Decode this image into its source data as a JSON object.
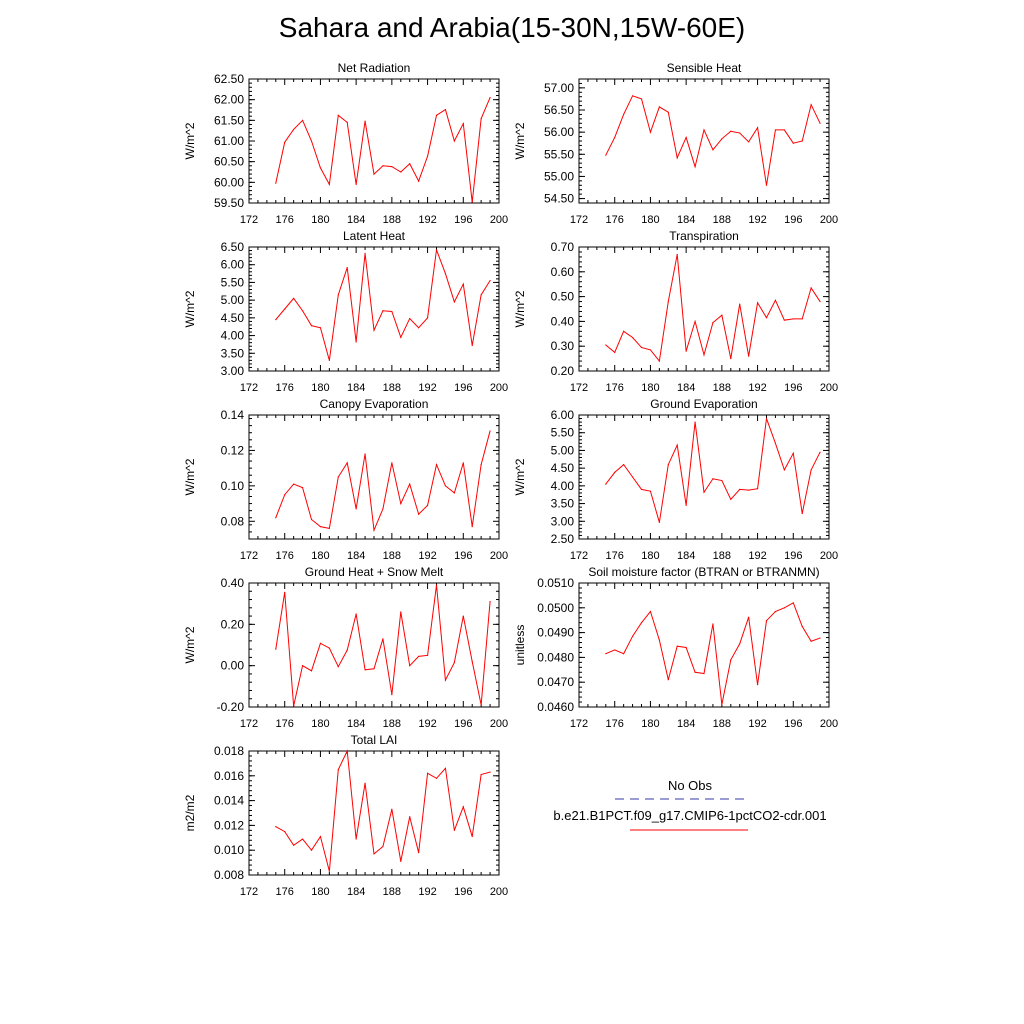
{
  "figure": {
    "title": "Sahara and Arabia(15-30N,15W-60E)"
  },
  "chart_data": [
    {
      "type": "line",
      "title": "Net Radiation",
      "ylabel": "W/m^2",
      "xlim": [
        172,
        200
      ],
      "xticks": [
        "172",
        "176",
        "180",
        "184",
        "188",
        "192",
        "196",
        "200"
      ],
      "ylim": [
        59.5,
        62.5
      ],
      "yticks": [
        "59.50",
        "60.00",
        "60.50",
        "61.00",
        "61.50",
        "62.00",
        "62.50"
      ],
      "x": [
        175,
        176,
        177,
        178,
        179,
        180,
        181,
        182,
        183,
        184,
        185,
        186,
        187,
        188,
        189,
        190,
        191,
        192,
        193,
        194,
        195,
        196,
        197,
        198,
        199
      ],
      "series": [
        {
          "color": "#ff0000",
          "values": [
            59.98,
            60.97,
            61.28,
            61.5,
            61.0,
            60.35,
            59.95,
            61.62,
            61.45,
            59.95,
            61.48,
            60.2,
            60.4,
            60.38,
            60.25,
            60.45,
            60.03,
            60.63,
            61.62,
            61.76,
            61.0,
            61.42,
            59.52,
            61.54,
            62.05
          ]
        }
      ]
    },
    {
      "type": "line",
      "title": "Sensible Heat",
      "ylabel": "W/m^2",
      "xlim": [
        172,
        200
      ],
      "xticks": [
        "172",
        "176",
        "180",
        "184",
        "188",
        "192",
        "196",
        "200"
      ],
      "ylim": [
        54.4,
        57.2
      ],
      "yticks": [
        "54.50",
        "55.00",
        "55.50",
        "56.00",
        "56.50",
        "57.00"
      ],
      "x": [
        175,
        176,
        177,
        178,
        179,
        180,
        181,
        182,
        183,
        184,
        185,
        186,
        187,
        188,
        189,
        190,
        191,
        192,
        193,
        194,
        195,
        196,
        197,
        198,
        199
      ],
      "series": [
        {
          "color": "#ff0000",
          "values": [
            55.48,
            55.88,
            56.4,
            56.82,
            56.75,
            56.0,
            56.57,
            56.45,
            55.42,
            55.88,
            55.22,
            56.05,
            55.6,
            55.85,
            56.02,
            55.98,
            55.78,
            56.1,
            54.8,
            56.05,
            56.05,
            55.75,
            55.8,
            56.62,
            56.2
          ]
        }
      ]
    },
    {
      "type": "line",
      "title": "Latent Heat",
      "ylabel": "W/m^2",
      "xlim": [
        172,
        200
      ],
      "xticks": [
        "172",
        "176",
        "180",
        "184",
        "188",
        "192",
        "196",
        "200"
      ],
      "ylim": [
        3.0,
        6.5
      ],
      "yticks": [
        "3.00",
        "3.50",
        "4.00",
        "4.50",
        "5.00",
        "5.50",
        "6.00",
        "6.50"
      ],
      "x": [
        175,
        176,
        177,
        178,
        179,
        180,
        181,
        182,
        183,
        184,
        185,
        186,
        187,
        188,
        189,
        190,
        191,
        192,
        193,
        194,
        195,
        196,
        197,
        198,
        199
      ],
      "series": [
        {
          "color": "#ff0000",
          "values": [
            4.45,
            4.75,
            5.05,
            4.7,
            4.28,
            4.22,
            3.3,
            5.15,
            5.92,
            3.82,
            6.32,
            4.15,
            4.7,
            4.68,
            3.95,
            4.48,
            4.22,
            4.5,
            6.42,
            5.75,
            4.95,
            5.45,
            3.72,
            5.15,
            5.55
          ]
        }
      ]
    },
    {
      "type": "line",
      "title": "Transpiration",
      "ylabel": "W/m^2",
      "xlim": [
        172,
        200
      ],
      "xticks": [
        "172",
        "176",
        "180",
        "184",
        "188",
        "192",
        "196",
        "200"
      ],
      "ylim": [
        0.2,
        0.7
      ],
      "yticks": [
        "0.20",
        "0.30",
        "0.40",
        "0.50",
        "0.60",
        "0.70"
      ],
      "x": [
        175,
        176,
        177,
        178,
        179,
        180,
        181,
        182,
        183,
        184,
        185,
        186,
        187,
        188,
        189,
        190,
        191,
        192,
        193,
        194,
        195,
        196,
        197,
        198,
        199
      ],
      "series": [
        {
          "color": "#ff0000",
          "values": [
            0.305,
            0.275,
            0.36,
            0.335,
            0.295,
            0.285,
            0.24,
            0.48,
            0.67,
            0.28,
            0.4,
            0.265,
            0.395,
            0.425,
            0.25,
            0.47,
            0.26,
            0.475,
            0.415,
            0.485,
            0.405,
            0.41,
            0.41,
            0.535,
            0.48
          ]
        }
      ]
    },
    {
      "type": "line",
      "title": "Canopy Evaporation",
      "ylabel": "W/m^2",
      "xlim": [
        172,
        200
      ],
      "xticks": [
        "172",
        "176",
        "180",
        "184",
        "188",
        "192",
        "196",
        "200"
      ],
      "ylim": [
        0.07,
        0.14
      ],
      "yticks": [
        "0.08",
        "0.10",
        "0.12",
        "0.14"
      ],
      "x": [
        175,
        176,
        177,
        178,
        179,
        180,
        181,
        182,
        183,
        184,
        185,
        186,
        187,
        188,
        189,
        190,
        191,
        192,
        193,
        194,
        195,
        196,
        197,
        198,
        199
      ],
      "series": [
        {
          "color": "#ff0000",
          "values": [
            0.082,
            0.095,
            0.101,
            0.099,
            0.081,
            0.077,
            0.076,
            0.105,
            0.113,
            0.087,
            0.118,
            0.075,
            0.087,
            0.113,
            0.09,
            0.101,
            0.084,
            0.089,
            0.112,
            0.1,
            0.096,
            0.113,
            0.077,
            0.112,
            0.131
          ]
        }
      ]
    },
    {
      "type": "line",
      "title": "Ground Evaporation",
      "ylabel": "W/m^2",
      "xlim": [
        172,
        200
      ],
      "xticks": [
        "172",
        "176",
        "180",
        "184",
        "188",
        "192",
        "196",
        "200"
      ],
      "ylim": [
        2.5,
        6.0
      ],
      "yticks": [
        "2.50",
        "3.00",
        "3.50",
        "4.00",
        "4.50",
        "5.00",
        "5.50",
        "6.00"
      ],
      "x": [
        175,
        176,
        177,
        178,
        179,
        180,
        181,
        182,
        183,
        184,
        185,
        186,
        187,
        188,
        189,
        190,
        191,
        192,
        193,
        194,
        195,
        196,
        197,
        198,
        199
      ],
      "series": [
        {
          "color": "#ff0000",
          "values": [
            4.05,
            4.38,
            4.6,
            4.25,
            3.9,
            3.85,
            2.97,
            4.6,
            5.15,
            3.45,
            5.8,
            3.82,
            4.2,
            4.15,
            3.62,
            3.9,
            3.88,
            3.92,
            5.9,
            5.2,
            4.45,
            4.92,
            3.22,
            4.45,
            4.95
          ]
        }
      ]
    },
    {
      "type": "line",
      "title": "Ground Heat + Snow Melt",
      "ylabel": "W/m^2",
      "xlim": [
        172,
        200
      ],
      "xticks": [
        "172",
        "176",
        "180",
        "184",
        "188",
        "192",
        "196",
        "200"
      ],
      "ylim": [
        -0.2,
        0.4
      ],
      "yticks": [
        "-0.20",
        "0.00",
        "0.20",
        "0.40"
      ],
      "x": [
        175,
        176,
        177,
        178,
        179,
        180,
        181,
        182,
        183,
        184,
        185,
        186,
        187,
        188,
        189,
        190,
        191,
        192,
        193,
        194,
        195,
        196,
        197,
        198,
        199
      ],
      "series": [
        {
          "color": "#ff0000",
          "values": [
            0.08,
            0.355,
            -0.195,
            0.0,
            -0.025,
            0.108,
            0.085,
            -0.005,
            0.075,
            0.25,
            -0.02,
            -0.015,
            0.13,
            -0.14,
            0.26,
            0.0,
            0.045,
            0.05,
            0.39,
            -0.07,
            0.015,
            0.24,
            0.02,
            -0.19,
            0.31
          ]
        }
      ]
    },
    {
      "type": "line",
      "title": "Soil moisture factor (BTRAN or BTRANMN)",
      "ylabel": "unitless",
      "xlim": [
        172,
        200
      ],
      "xticks": [
        "172",
        "176",
        "180",
        "184",
        "188",
        "192",
        "196",
        "200"
      ],
      "ylim": [
        0.046,
        0.051
      ],
      "yticks": [
        "0.0460",
        "0.0470",
        "0.0480",
        "0.0490",
        "0.0500",
        "0.0510"
      ],
      "x": [
        175,
        176,
        177,
        178,
        179,
        180,
        181,
        182,
        183,
        184,
        185,
        186,
        187,
        188,
        189,
        190,
        191,
        192,
        193,
        194,
        195,
        196,
        197,
        198,
        199
      ],
      "series": [
        {
          "color": "#ff0000",
          "values": [
            0.04815,
            0.0483,
            0.04815,
            0.04885,
            0.0494,
            0.04985,
            0.0487,
            0.0471,
            0.04845,
            0.0484,
            0.0474,
            0.04735,
            0.04935,
            0.0461,
            0.0479,
            0.04855,
            0.04962,
            0.0469,
            0.04948,
            0.04985,
            0.05,
            0.0502,
            0.04925,
            0.04865,
            0.04878
          ]
        }
      ]
    },
    {
      "type": "line",
      "title": "Total LAI",
      "ylabel": "m2/m2",
      "xlim": [
        172,
        200
      ],
      "xticks": [
        "172",
        "176",
        "180",
        "184",
        "188",
        "192",
        "196",
        "200"
      ],
      "ylim": [
        0.008,
        0.018
      ],
      "yticks": [
        "0.008",
        "0.010",
        "0.012",
        "0.014",
        "0.016",
        "0.018"
      ],
      "x": [
        175,
        176,
        177,
        178,
        179,
        180,
        181,
        182,
        183,
        184,
        185,
        186,
        187,
        188,
        189,
        190,
        191,
        192,
        193,
        194,
        195,
        196,
        197,
        198,
        199
      ],
      "series": [
        {
          "color": "#ff0000",
          "values": [
            0.0119,
            0.0115,
            0.0104,
            0.0109,
            0.01,
            0.0111,
            0.0083,
            0.0165,
            0.018,
            0.0109,
            0.0154,
            0.0097,
            0.0103,
            0.0133,
            0.0091,
            0.0127,
            0.0098,
            0.0162,
            0.0158,
            0.0166,
            0.0116,
            0.0135,
            0.0111,
            0.0161,
            0.0163
          ]
        }
      ]
    }
  ],
  "legend": {
    "entries": [
      {
        "label": "No Obs",
        "color": "#3a3aa8",
        "style": "dashed"
      },
      {
        "label": "b.e21.B1PCT.f09_g17.CMIP6-1pctCO2-cdr.001",
        "color": "#ff0000",
        "style": "solid"
      }
    ]
  }
}
